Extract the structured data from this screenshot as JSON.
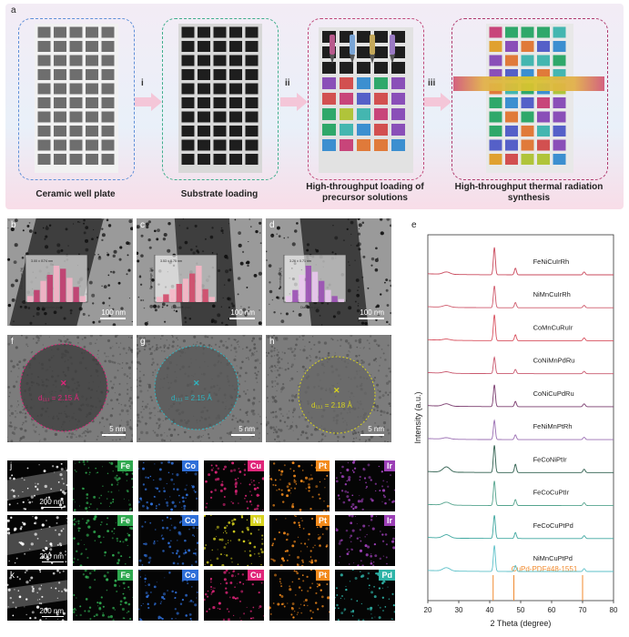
{
  "panel_a": {
    "label": "a",
    "steps": [
      "i",
      "ii",
      "iii"
    ],
    "captions": [
      "Ceramic well plate",
      "Substrate loading",
      "High-throughput loading of precursor solutions",
      "High-throughput thermal radiation synthesis"
    ]
  },
  "panels_bcd": [
    {
      "label": "b",
      "scale": "100 nm",
      "stat": "3.00 ± 0.74 nm"
    },
    {
      "label": "c",
      "scale": "100 nm",
      "stat": "3.53 ± 0.75 nm"
    },
    {
      "label": "d",
      "scale": "100 nm",
      "stat": "3.26 ± 0.71 nm"
    }
  ],
  "histograms": [
    [
      2,
      4,
      7,
      9,
      12,
      11,
      8,
      5,
      2
    ],
    [
      2,
      3,
      5,
      7,
      9,
      11,
      14,
      5,
      2
    ],
    [
      2,
      4,
      9,
      12,
      10,
      7,
      4,
      2,
      1
    ]
  ],
  "hist_axis": {
    "ylabel": "Percentage (%)",
    "xlabel": "Diameter (nm)"
  },
  "panels_fgh": [
    {
      "label": "f",
      "scale": "5 nm",
      "dlabel": "d₁₁₁ = 2.15 Å"
    },
    {
      "label": "g",
      "scale": "5 nm",
      "dlabel": "d₁₁₁ = 2.15 Å"
    },
    {
      "label": "h",
      "scale": "5 nm",
      "dlabel": "d₁₁₁ = 2.18 Å"
    }
  ],
  "eds_rows": [
    {
      "label": "j",
      "scale": "200 nm",
      "elements": [
        {
          "name": "Fe",
          "color": "#2fa84f"
        },
        {
          "name": "Co",
          "color": "#2f6fd8"
        },
        {
          "name": "Cu",
          "color": "#e0257a"
        },
        {
          "name": "Pt",
          "color": "#f28a1c"
        },
        {
          "name": "Ir",
          "color": "#9b3fb5"
        }
      ]
    },
    {
      "label": "",
      "scale": "200 nm",
      "elements": [
        {
          "name": "Fe",
          "color": "#2fa84f"
        },
        {
          "name": "Co",
          "color": "#2f6fd8"
        },
        {
          "name": "Ni",
          "color": "#d7d21e"
        },
        {
          "name": "Pt",
          "color": "#f28a1c"
        },
        {
          "name": "Ir",
          "color": "#9b3fb5"
        }
      ]
    },
    {
      "label": "k",
      "scale": "200 nm",
      "elements": [
        {
          "name": "Fe",
          "color": "#2fa84f"
        },
        {
          "name": "Co",
          "color": "#2f6fd8"
        },
        {
          "name": "Cu",
          "color": "#e0257a"
        },
        {
          "name": "Pt",
          "color": "#f28a1c"
        },
        {
          "name": "Pd",
          "color": "#2fb4a8"
        }
      ]
    }
  ],
  "chart_data": {
    "type": "line",
    "label": "e",
    "xlabel": "2 Theta (degree)",
    "ylabel": "Intensity (a.u.)",
    "xlim": [
      20,
      80
    ],
    "xticks": [
      20,
      30,
      40,
      50,
      60,
      70,
      80
    ],
    "reference": {
      "name": "CuPd-PDF#48-1551",
      "peaks": [
        41.1,
        47.8,
        70.0
      ],
      "color": "#f08a2e"
    },
    "peaks": [
      26.0,
      41.5,
      48.3,
      70.5
    ],
    "series": [
      {
        "name": "FeNiCuIrRh",
        "color": "#c9485b",
        "intensity": [
          0.1,
          1.0,
          0.28,
          0.12
        ]
      },
      {
        "name": "NiMnCuIrRh",
        "color": "#cf5a6c",
        "intensity": [
          0.08,
          0.8,
          0.22,
          0.1
        ]
      },
      {
        "name": "CoMnCuRuIr",
        "color": "#d8505e",
        "intensity": [
          0.05,
          0.95,
          0.25,
          0.12
        ]
      },
      {
        "name": "CoNiMnPdRu",
        "color": "#c9586e",
        "intensity": [
          0.06,
          0.6,
          0.18,
          0.1
        ]
      },
      {
        "name": "CoNiCuPdRu",
        "color": "#7a3b6e",
        "intensity": [
          0.1,
          0.8,
          0.22,
          0.12
        ]
      },
      {
        "name": "FeNiMnPtRh",
        "color": "#9b6fb3",
        "intensity": [
          0.06,
          0.7,
          0.2,
          0.1
        ]
      },
      {
        "name": "FeCoNiPtIr",
        "color": "#2f5f4e",
        "intensity": [
          0.22,
          1.0,
          0.35,
          0.14
        ]
      },
      {
        "name": "FeCoCuPtIr",
        "color": "#55a48e",
        "intensity": [
          0.12,
          0.9,
          0.25,
          0.12
        ]
      },
      {
        "name": "FeCoCuPtPd",
        "color": "#3fa7a0",
        "intensity": [
          0.14,
          0.85,
          0.25,
          0.12
        ]
      },
      {
        "name": "NiMnCuPtPd",
        "color": "#5cc0c8",
        "intensity": [
          0.14,
          0.95,
          0.25,
          0.12
        ]
      }
    ]
  }
}
